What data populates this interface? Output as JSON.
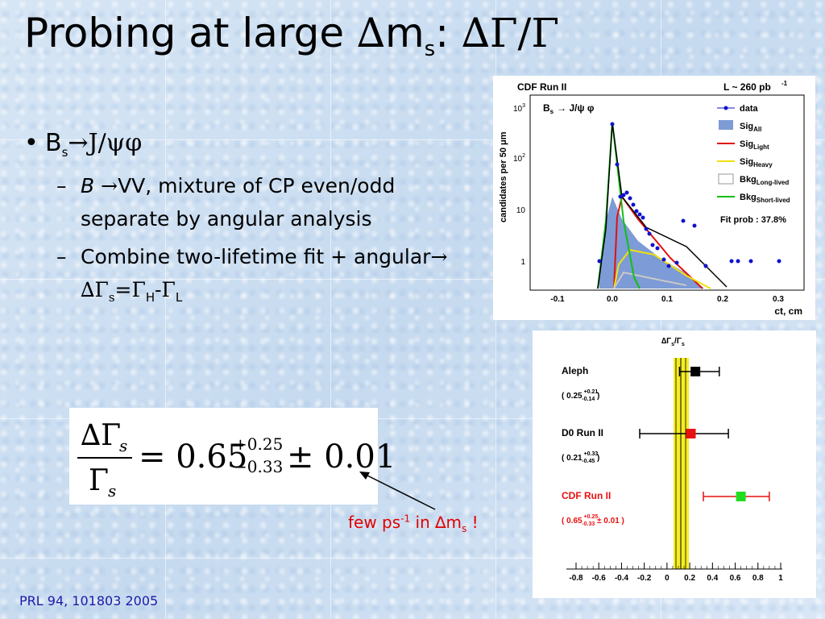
{
  "title": {
    "prefix": "Probing at large ",
    "delta": "∆",
    "m": "m",
    "sub": "s",
    "colon": ": ",
    "ratio": "∆Γ/Γ"
  },
  "bullet1": {
    "b": "B",
    "sub": "s",
    "arrow": "→",
    "rest": "J/ψφ"
  },
  "sub1": {
    "dash": "–",
    "b": "B ",
    "arrow": "→",
    "text": "VV, mixture of CP even/odd separate by angular analysis"
  },
  "sub2": {
    "dash": "–",
    "text1": "Combine two-lifetime fit + angular",
    "arrow": "→",
    "dg": " ∆Γ",
    "s": "s",
    "eq": "=Γ",
    "h": "H",
    "minus": "-Γ",
    "l": "L"
  },
  "formula": {
    "num_delta": "∆Γ",
    "num_sub": "s",
    "den": "Γ",
    "den_sub": "s",
    "eq": "= 0.65",
    "sup": "+0.25",
    "sub": "−0.33",
    "pm": "± 0.01"
  },
  "note": {
    "text1": "few ps",
    "sup": "-1",
    "text2": " in ∆m",
    "sub": "s",
    "text3": " !"
  },
  "reference": "PRL 94, 101803 2005",
  "plot1": {
    "header_left": "CDF Run II",
    "header_right": "L ~ 260 pb",
    "header_right_sup": "-1",
    "channel": "B",
    "channel_sub": "s",
    "channel_rest": "→ J/ψ φ",
    "ylabel": "candidates per 50 μm",
    "xlabel": "ct, cm",
    "fit_prob": "Fit prob : 37.8%",
    "yticks": [
      "10",
      "10",
      "10",
      "1"
    ],
    "ytick_sups": [
      "3",
      "2",
      "",
      ""
    ],
    "xticks": [
      "-0.1",
      "0.0",
      "0.1",
      "0.2",
      "0.3"
    ],
    "legend": [
      {
        "label": "data",
        "sub": "",
        "color": "#1010d0"
      },
      {
        "label": "Sig",
        "sub": "All",
        "color": "#7d9bd6"
      },
      {
        "label": "Sig",
        "sub": "Light",
        "color": "#e01010"
      },
      {
        "label": "Sig",
        "sub": "Heavy",
        "color": "#f0e010"
      },
      {
        "label": "Bkg",
        "sub": "Long-lived",
        "color": "#c8c8c8"
      },
      {
        "label": "Bkg",
        "sub": "Short-lived",
        "color": "#10c010"
      }
    ]
  },
  "plot2": {
    "title": "∆Γ",
    "title_sub1": "s",
    "title_mid": "/Γ",
    "title_sub2": "s",
    "band_color": "#f5ee22",
    "xticks": [
      "-0.8",
      "-0.6",
      "-0.4",
      "-0.2",
      "0",
      "0.2",
      "0.4",
      "0.6",
      "0.8",
      "1"
    ],
    "measurements": [
      {
        "name": "Aleph",
        "value": "( 0.25",
        "up": "+0.21",
        "down": "-0.14",
        "close": " )",
        "central": 0.25,
        "lo": 0.11,
        "hi": 0.46,
        "color": "#000000",
        "text_color": "#000000"
      },
      {
        "name": "D0 Run II",
        "value": "( 0.21",
        "up": "+0.33",
        "down": "-0.45",
        "close": " )",
        "central": 0.21,
        "lo": -0.24,
        "hi": 0.54,
        "color": "#e81010",
        "text_color": "#000000"
      },
      {
        "name": "CDF Run II",
        "value": "( 0.65",
        "up": "+0.25",
        "down": "-0.33",
        "close": " ± 0.01 )",
        "central": 0.65,
        "lo": 0.32,
        "hi": 0.9,
        "color": "#20dd20",
        "text_color": "#e81010"
      }
    ]
  }
}
